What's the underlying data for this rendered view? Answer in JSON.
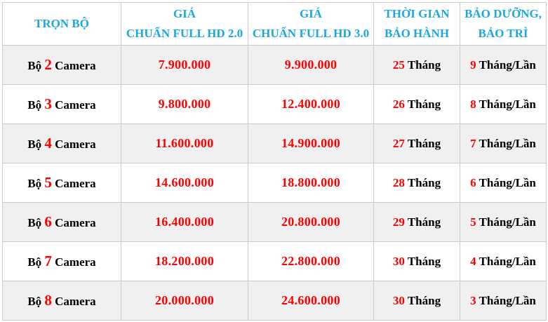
{
  "page": {
    "title": "Bảng giá trọn bộ camera"
  },
  "colors": {
    "header_text": "#1ca7e0",
    "accent_red": "#fe0000",
    "body_text": "#000000",
    "row_alt_bg": "#f0f0f0",
    "row_bg": "#ffffff",
    "border": "#cccccc"
  },
  "table": {
    "header": {
      "col1": {
        "line1": "TRỌN BỘ"
      },
      "col2": {
        "line1": "GIÁ",
        "line2": "CHUẨN FULL HD 2.0"
      },
      "col3": {
        "line1": "GIÁ",
        "line2": "CHUẨN FULL HD 3.0"
      },
      "col4": {
        "line1": "THỜI GIAN",
        "line2": "BẢO HÀNH"
      },
      "col5": {
        "line1": "BẢO DƯỠNG,",
        "line2": "BẢO TRÌ"
      }
    },
    "rows": [
      {
        "bo_label": "Bộ",
        "count": "2",
        "camera_label": "Camera",
        "price_hd20": "7.900.000",
        "price_hd30": "9.900.000",
        "warranty_value": "25",
        "warranty_unit": "Tháng",
        "maintenance_value": "9",
        "maintenance_unit": "Tháng/Lần"
      },
      {
        "bo_label": "Bộ",
        "count": "3",
        "camera_label": "Camera",
        "price_hd20": "9.800.000",
        "price_hd30": "12.400.000",
        "warranty_value": "26",
        "warranty_unit": "Tháng",
        "maintenance_value": "8",
        "maintenance_unit": "Tháng/Lần"
      },
      {
        "bo_label": "Bộ",
        "count": "4",
        "camera_label": "Camera",
        "price_hd20": "11.600.000",
        "price_hd30": "14.900.000",
        "warranty_value": "27",
        "warranty_unit": "Tháng",
        "maintenance_value": "7",
        "maintenance_unit": "Tháng/Lần"
      },
      {
        "bo_label": "Bộ",
        "count": "5",
        "camera_label": "Camera",
        "price_hd20": "14.600.000",
        "price_hd30": "18.800.000",
        "warranty_value": "28",
        "warranty_unit": "Tháng",
        "maintenance_value": "6",
        "maintenance_unit": "Tháng/Lần"
      },
      {
        "bo_label": "Bộ",
        "count": "6",
        "camera_label": "Camera",
        "price_hd20": "16.400.000",
        "price_hd30": "20.800.000",
        "warranty_value": "29",
        "warranty_unit": "Tháng",
        "maintenance_value": "5",
        "maintenance_unit": "Tháng/Lần"
      },
      {
        "bo_label": "Bộ",
        "count": "7",
        "camera_label": "Camera",
        "price_hd20": "18.200.000",
        "price_hd30": "22.800.000",
        "warranty_value": "30",
        "warranty_unit": "Tháng",
        "maintenance_value": "4",
        "maintenance_unit": "Tháng/Lần"
      },
      {
        "bo_label": "Bộ",
        "count": "8",
        "camera_label": "Camera",
        "price_hd20": "20.000.000",
        "price_hd30": "24.600.000",
        "warranty_value": "30",
        "warranty_unit": "Tháng",
        "maintenance_value": "3",
        "maintenance_unit": "Tháng/Lần"
      }
    ]
  }
}
